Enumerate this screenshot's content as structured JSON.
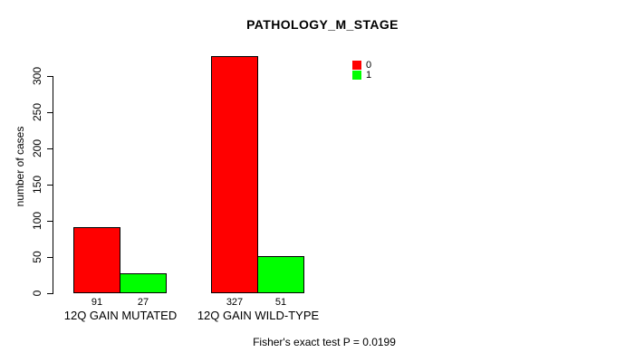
{
  "header": {
    "title": "PATHOLOGY_M_STAGE"
  },
  "chart_data": {
    "type": "bar",
    "title": "PATHOLOGY_M_STAGE",
    "xlabel": "",
    "ylabel": "number of cases",
    "categories": [
      "12Q GAIN MUTATED",
      "12Q GAIN WILD-TYPE"
    ],
    "series": [
      {
        "name": "0",
        "color": "#ff0000",
        "values": [
          91,
          327
        ]
      },
      {
        "name": "1",
        "color": "#00ff00",
        "values": [
          27,
          51
        ]
      }
    ],
    "bar_value_labels": [
      [
        91,
        27
      ],
      [
        327,
        51
      ]
    ],
    "yticks": [
      0,
      50,
      100,
      150,
      200,
      250,
      300
    ],
    "ylim": [
      0,
      330
    ],
    "grid": false,
    "legend_position": "top-right",
    "bar_border_color": "#000000",
    "background_color": "#ffffff"
  },
  "footer": {
    "text": "Fisher's exact test P = 0.0199"
  }
}
